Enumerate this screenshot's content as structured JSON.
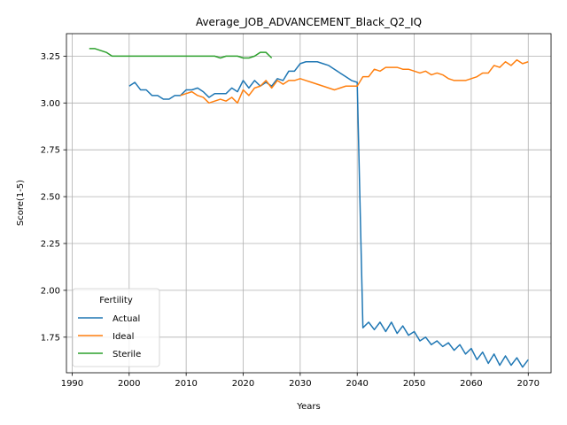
{
  "chart_data": {
    "type": "line",
    "title": "Average_JOB_ADVANCEMENT_Black_Q2_IQ",
    "xlabel": "Years",
    "ylabel": "Score(1-5)",
    "xlim": [
      1989,
      2074
    ],
    "ylim": [
      1.56,
      3.37
    ],
    "xticks": [
      "1990",
      "2000",
      "2010",
      "2020",
      "2030",
      "2040",
      "2050",
      "2060",
      "2070"
    ],
    "yticks": [
      "1.75",
      "2.00",
      "2.25",
      "2.50",
      "2.75",
      "3.00",
      "3.25"
    ],
    "grid": true,
    "legend": {
      "title": "Fertility",
      "placement": "lower-left"
    },
    "series": [
      {
        "name": "Actual",
        "color": "#1f77b4",
        "x": [
          2000,
          2001,
          2002,
          2003,
          2004,
          2005,
          2006,
          2007,
          2008,
          2009,
          2010,
          2011,
          2012,
          2013,
          2014,
          2015,
          2016,
          2017,
          2018,
          2019,
          2020,
          2021,
          2022,
          2023,
          2024,
          2025,
          2026,
          2027,
          2028,
          2029,
          2030,
          2031,
          2032,
          2033,
          2034,
          2035,
          2036,
          2037,
          2038,
          2039,
          2040,
          2041,
          2042,
          2043,
          2044,
          2045,
          2046,
          2047,
          2048,
          2049,
          2050,
          2051,
          2052,
          2053,
          2054,
          2055,
          2056,
          2057,
          2058,
          2059,
          2060,
          2061,
          2062,
          2063,
          2064,
          2065,
          2066,
          2067,
          2068,
          2069,
          2070
        ],
        "values": [
          3.09,
          3.11,
          3.07,
          3.07,
          3.04,
          3.04,
          3.02,
          3.02,
          3.04,
          3.04,
          3.07,
          3.07,
          3.08,
          3.06,
          3.03,
          3.05,
          3.05,
          3.05,
          3.08,
          3.06,
          3.12,
          3.08,
          3.12,
          3.09,
          3.11,
          3.09,
          3.13,
          3.12,
          3.17,
          3.17,
          3.21,
          3.22,
          3.22,
          3.22,
          3.21,
          3.2,
          3.18,
          3.16,
          3.14,
          3.12,
          3.11,
          1.8,
          1.83,
          1.79,
          1.83,
          1.78,
          1.83,
          1.77,
          1.81,
          1.76,
          1.78,
          1.73,
          1.75,
          1.71,
          1.73,
          1.7,
          1.72,
          1.68,
          1.71,
          1.66,
          1.69,
          1.63,
          1.67,
          1.61,
          1.66,
          1.6,
          1.65,
          1.6,
          1.64,
          1.59,
          1.63
        ]
      },
      {
        "name": "Ideal",
        "color": "#ff7f0e",
        "x": [
          2009,
          2010,
          2011,
          2012,
          2013,
          2014,
          2015,
          2016,
          2017,
          2018,
          2019,
          2020,
          2021,
          2022,
          2023,
          2024,
          2025,
          2026,
          2027,
          2028,
          2029,
          2030,
          2031,
          2032,
          2033,
          2034,
          2035,
          2036,
          2037,
          2038,
          2039,
          2040,
          2041,
          2042,
          2043,
          2044,
          2045,
          2046,
          2047,
          2048,
          2049,
          2050,
          2051,
          2052,
          2053,
          2054,
          2055,
          2056,
          2057,
          2058,
          2059,
          2060,
          2061,
          2062,
          2063,
          2064,
          2065,
          2066,
          2067,
          2068,
          2069,
          2070
        ],
        "values": [
          3.04,
          3.05,
          3.06,
          3.04,
          3.03,
          3.0,
          3.01,
          3.02,
          3.01,
          3.03,
          3.0,
          3.07,
          3.04,
          3.08,
          3.09,
          3.12,
          3.08,
          3.12,
          3.1,
          3.12,
          3.12,
          3.13,
          3.12,
          3.11,
          3.1,
          3.09,
          3.08,
          3.07,
          3.08,
          3.09,
          3.09,
          3.09,
          3.14,
          3.14,
          3.18,
          3.17,
          3.19,
          3.19,
          3.19,
          3.18,
          3.18,
          3.17,
          3.16,
          3.17,
          3.15,
          3.16,
          3.15,
          3.13,
          3.12,
          3.12,
          3.12,
          3.13,
          3.14,
          3.16,
          3.16,
          3.2,
          3.19,
          3.22,
          3.2,
          3.23,
          3.21,
          3.22
        ]
      },
      {
        "name": "Sterile",
        "color": "#2ca02c",
        "x": [
          1993,
          1994,
          1995,
          1996,
          1997,
          1998,
          1999,
          2000,
          2005,
          2010,
          2015,
          2016,
          2017,
          2018,
          2019,
          2020,
          2021,
          2022,
          2023,
          2024,
          2025
        ],
        "values": [
          3.29,
          3.29,
          3.28,
          3.27,
          3.25,
          3.25,
          3.25,
          3.25,
          3.25,
          3.25,
          3.25,
          3.24,
          3.25,
          3.25,
          3.25,
          3.24,
          3.24,
          3.25,
          3.27,
          3.27,
          3.24
        ]
      }
    ]
  }
}
